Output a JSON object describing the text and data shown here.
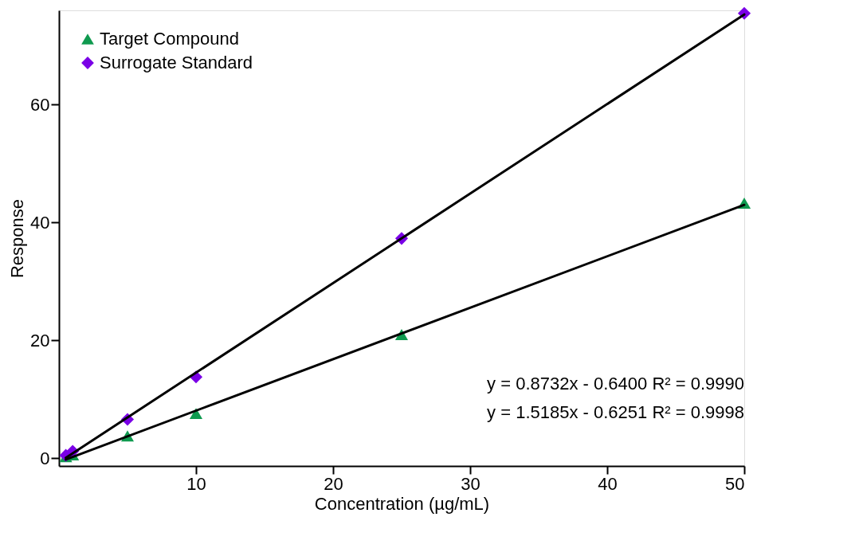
{
  "chart_data": {
    "type": "scatter",
    "xlabel": "Concentration (µg/mL)",
    "ylabel": "Response",
    "xlim": [
      0,
      50
    ],
    "ylim": [
      -1.3,
      76
    ],
    "xticks": [
      10,
      20,
      30,
      40,
      50
    ],
    "yticks": [
      0,
      20,
      40,
      60
    ],
    "grid": false,
    "legend": "top left",
    "series": [
      {
        "name": "Target Compound",
        "color": "#0f9a4f",
        "marker": "triangle",
        "x": [
          0.5,
          1,
          5,
          10,
          25,
          50
        ],
        "values": [
          0.3,
          0.6,
          3.8,
          7.6,
          21,
          43.3
        ]
      },
      {
        "name": "Surrogate Standard",
        "color": "#7a00e6",
        "marker": "diamond",
        "x": [
          0.5,
          1,
          5,
          10,
          25,
          50
        ],
        "values": [
          0.5,
          1.2,
          6.6,
          13.8,
          37.3,
          75.5
        ]
      },
      {
        "type": "line",
        "color": "#000000",
        "x": [
          0.5,
          50
        ],
        "values": [
          -0.2,
          43.0
        ]
      },
      {
        "type": "line",
        "color": "#000000",
        "x": [
          0.5,
          50
        ],
        "values": [
          0.1,
          75.3
        ]
      }
    ],
    "annotations": [
      {
        "text": "y = 0.8732x - 0.6400    R² = 0.9990"
      },
      {
        "text": "y = 1.5185x - 0.6251    R² = 0.9998"
      }
    ]
  }
}
